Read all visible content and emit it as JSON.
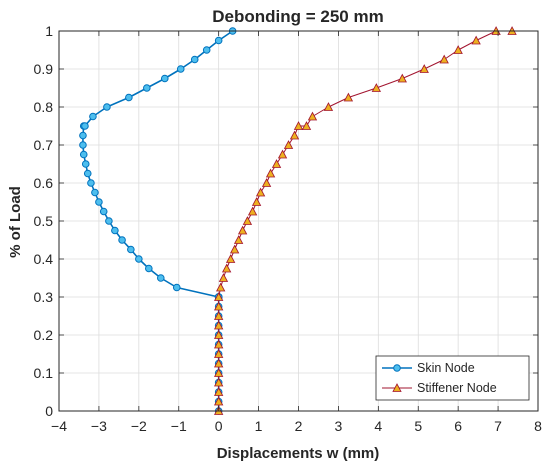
{
  "chart_data": {
    "type": "line",
    "title": "Debonding = 250 mm",
    "xlabel": "Displacements w (mm)",
    "ylabel": "% of Load",
    "xlim": [
      -4,
      8
    ],
    "ylim": [
      0,
      1
    ],
    "xticks": [
      -4,
      -3,
      -2,
      -1,
      0,
      1,
      2,
      3,
      4,
      5,
      6,
      7,
      8
    ],
    "yticks": [
      0,
      0.1,
      0.2,
      0.3,
      0.4,
      0.5,
      0.6,
      0.7,
      0.8,
      0.9,
      1
    ],
    "grid": true,
    "legend_position": "bottom-right",
    "series": [
      {
        "name": "Skin Node",
        "color": "#0072BD",
        "marker": "circle",
        "x": [
          0.0,
          0.0,
          0.0,
          0.0,
          0.0,
          0.0,
          0.0,
          0.0,
          0.0,
          0.0,
          0.0,
          0.0,
          0.0,
          0.0,
          0.0,
          0.0,
          0.0,
          0.0,
          0.0,
          0.0,
          0.0,
          -1.05,
          -1.45,
          -1.75,
          -2.0,
          -2.2,
          -2.42,
          -2.6,
          -2.75,
          -2.88,
          -3.0,
          -3.1,
          -3.2,
          -3.28,
          -3.33,
          -3.38,
          -3.4,
          -3.4,
          -3.38,
          -3.35,
          -3.15,
          -2.8,
          -2.25,
          -1.8,
          -1.35,
          -0.95,
          -0.6,
          -0.3,
          0.0,
          0.35
        ],
        "y": [
          0.0,
          0.025,
          0.05,
          0.075,
          0.1,
          0.125,
          0.15,
          0.175,
          0.2,
          0.225,
          0.25,
          0.275,
          0.3,
          0.3,
          0.3,
          0.3,
          0.3,
          0.3,
          0.3,
          0.3,
          0.3,
          0.325,
          0.35,
          0.375,
          0.4,
          0.425,
          0.45,
          0.475,
          0.5,
          0.525,
          0.55,
          0.575,
          0.6,
          0.625,
          0.65,
          0.675,
          0.7,
          0.725,
          0.75,
          0.75,
          0.775,
          0.8,
          0.825,
          0.85,
          0.875,
          0.9,
          0.925,
          0.95,
          0.975,
          1.0
        ]
      },
      {
        "name": "Stiffener Node",
        "color": "#A2142F",
        "marker_face": "#EDB120",
        "marker": "triangle",
        "x": [
          0.0,
          0.0,
          0.0,
          0.0,
          0.0,
          0.0,
          0.0,
          0.0,
          0.0,
          0.0,
          0.0,
          0.0,
          0.0,
          0.05,
          0.12,
          0.2,
          0.3,
          0.4,
          0.5,
          0.6,
          0.72,
          0.85,
          0.95,
          1.05,
          1.2,
          1.3,
          1.45,
          1.6,
          1.75,
          1.9,
          2.0,
          2.2,
          2.35,
          2.75,
          3.25,
          3.95,
          4.6,
          5.15,
          5.65,
          6.0,
          6.45,
          6.95,
          7.35
        ],
        "y": [
          0.0,
          0.025,
          0.05,
          0.075,
          0.1,
          0.125,
          0.15,
          0.175,
          0.2,
          0.225,
          0.25,
          0.275,
          0.3,
          0.325,
          0.35,
          0.375,
          0.4,
          0.425,
          0.45,
          0.475,
          0.5,
          0.525,
          0.55,
          0.575,
          0.6,
          0.625,
          0.65,
          0.675,
          0.7,
          0.725,
          0.75,
          0.75,
          0.775,
          0.8,
          0.825,
          0.85,
          0.875,
          0.9,
          0.925,
          0.95,
          0.975,
          1.0,
          1.0
        ]
      }
    ]
  }
}
